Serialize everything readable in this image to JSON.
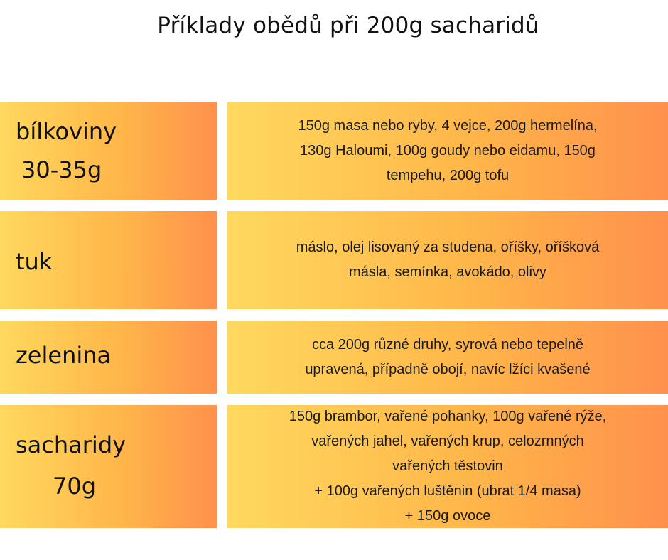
{
  "title": "Příklady obědů při 200g sacharidů",
  "rows": [
    {
      "label_lines": [
        "bílkoviny",
        "30-35g"
      ],
      "text": "150g masa nebo ryby, 4 vejce, 200g hermelína,\n130g Haloumi, 100g goudy nebo eidamu, 150g\ntempehu, 200g tofu"
    },
    {
      "label_lines": [
        "tuk"
      ],
      "text": "máslo, olej lisovaný za studena, oříšky, oříšková\nmásla, semínka, avokádo, olivy"
    },
    {
      "label_lines": [
        "zelenina"
      ],
      "text": "cca 200g různé druhy, syrová nebo tepelně\nupravená, případně obojí, navíc lžíci kvašené"
    },
    {
      "label_lines": [
        "sacharidy",
        "70g"
      ],
      "text": "150g brambor, vařené pohanky, 100g vařené rýže,\nvařených jahel, vařených krup, celozrnných\nvařených těstovin\n+ 100g vařených luštěnin (ubrat 1/4 masa)\n+ 150g ovoce"
    }
  ],
  "colors": {
    "gradient_start": "#ffd95e",
    "gradient_end": "#ff914d",
    "text": "#111111",
    "background": "#ffffff"
  }
}
